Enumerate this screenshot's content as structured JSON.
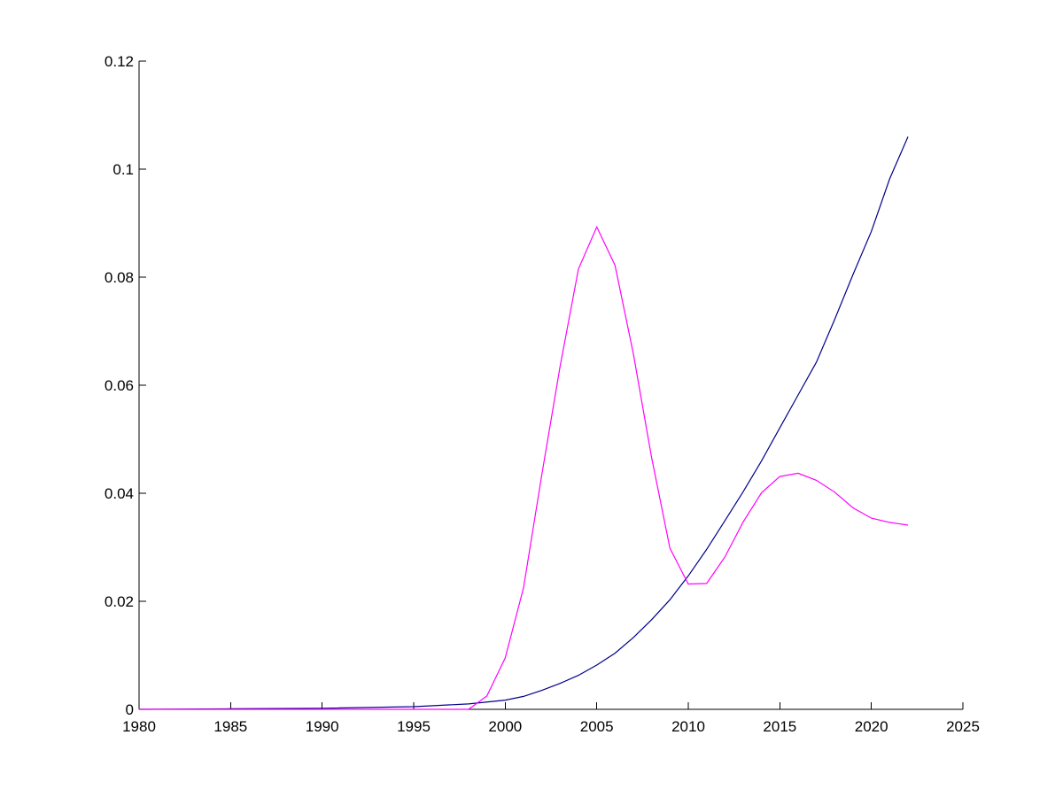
{
  "chart_data": {
    "type": "line",
    "title": "",
    "xlabel": "",
    "ylabel": "",
    "xlim": [
      1980,
      2025
    ],
    "ylim": [
      0,
      0.12
    ],
    "x_ticks": [
      "1980",
      "1985",
      "1990",
      "1995",
      "2000",
      "2005",
      "2010",
      "2015",
      "2020",
      "2025"
    ],
    "y_ticks": [
      "0",
      "0.02",
      "0.04",
      "0.06",
      "0.08",
      "0.1",
      "0.12"
    ],
    "grid": false,
    "legend": "none",
    "series": [
      {
        "color": "#00008b",
        "x": [
          1980,
          1985,
          1990,
          1995,
          1998,
          2000,
          2001,
          2002,
          2003,
          2004,
          2005,
          2006,
          2007,
          2008,
          2009,
          2010,
          2011,
          2012,
          2013,
          2014,
          2015,
          2016,
          2017,
          2018,
          2019,
          2020,
          2021,
          2022
        ],
        "y": [
          0.0,
          0.0001,
          0.0002,
          0.0005,
          0.001,
          0.0017,
          0.0024,
          0.0035,
          0.0048,
          0.0063,
          0.0082,
          0.0104,
          0.0133,
          0.0166,
          0.0203,
          0.0247,
          0.0296,
          0.0349,
          0.0403,
          0.046,
          0.0521,
          0.0582,
          0.0643,
          0.0722,
          0.0805,
          0.0885,
          0.0982,
          0.106
        ]
      },
      {
        "color": "#ff00ff",
        "x": [
          1980,
          1985,
          1990,
          1995,
          1998,
          1999,
          2000,
          2001,
          2002,
          2003,
          2004,
          2005,
          2006,
          2007,
          2008,
          2009,
          2010,
          2011,
          2012,
          2013,
          2014,
          2015,
          2016,
          2017,
          2018,
          2019,
          2020,
          2021,
          2022
        ],
        "y": [
          0.0,
          0.0,
          0.0,
          0.0,
          0.0,
          0.0025,
          0.0095,
          0.0225,
          0.0435,
          0.0635,
          0.0815,
          0.0893,
          0.0822,
          0.0658,
          0.0465,
          0.0298,
          0.0232,
          0.0233,
          0.0282,
          0.0347,
          0.0401,
          0.0431,
          0.0437,
          0.0424,
          0.0402,
          0.0373,
          0.0354,
          0.0346,
          0.0341
        ]
      }
    ]
  }
}
